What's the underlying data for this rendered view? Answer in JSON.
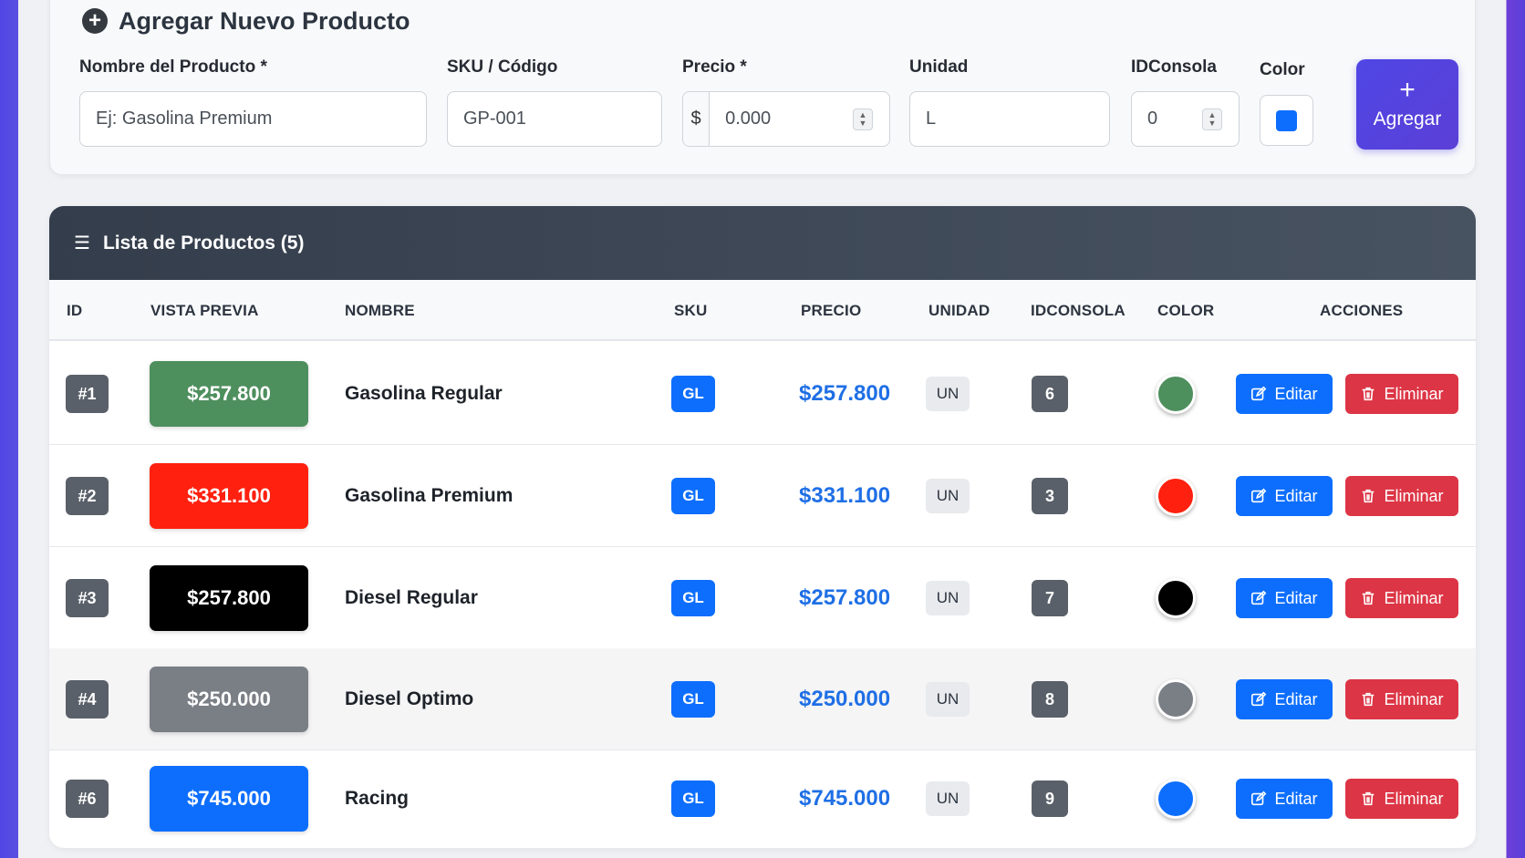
{
  "form": {
    "title": "Agregar Nuevo Producto",
    "fields": {
      "name": {
        "label": "Nombre del Producto *",
        "placeholder": "Ej: Gasolina Premium"
      },
      "sku": {
        "label": "SKU / Código",
        "placeholder": "GP-001"
      },
      "price": {
        "label": "Precio *",
        "prefix": "$",
        "placeholder": "0.000"
      },
      "unit": {
        "label": "Unidad",
        "value": "L"
      },
      "console": {
        "label": "IDConsola",
        "value": "0"
      },
      "color": {
        "label": "Color",
        "value": "#0d6efd"
      }
    },
    "submit": {
      "icon": "+",
      "label": "Agregar"
    }
  },
  "list": {
    "title": "Lista de Productos (5)",
    "columns": [
      "ID",
      "VISTA PREVIA",
      "NOMBRE",
      "SKU",
      "PRECIO",
      "UNIDAD",
      "IDCONSOLA",
      "COLOR",
      "ACCIONES"
    ],
    "edit_label": "Editar",
    "delete_label": "Eliminar",
    "rows": [
      {
        "id": "#1",
        "preview": "$257.800",
        "name": "Gasolina Regular",
        "sku": "GL",
        "price": "$257.800",
        "unit": "UN",
        "console": "6",
        "color": "#4e8f5e"
      },
      {
        "id": "#2",
        "preview": "$331.100",
        "name": "Gasolina Premium",
        "sku": "GL",
        "price": "$331.100",
        "unit": "UN",
        "console": "3",
        "color": "#ff200f"
      },
      {
        "id": "#3",
        "preview": "$257.800",
        "name": "Diesel Regular",
        "sku": "GL",
        "price": "$257.800",
        "unit": "UN",
        "console": "7",
        "color": "#000000"
      },
      {
        "id": "#4",
        "preview": "$250.000",
        "name": "Diesel Optimo",
        "sku": "GL",
        "price": "$250.000",
        "unit": "UN",
        "console": "8",
        "color": "#7a7f86"
      },
      {
        "id": "#6",
        "preview": "$745.000",
        "name": "Racing",
        "sku": "GL",
        "price": "$745.000",
        "unit": "UN",
        "console": "9",
        "color": "#0d6efd"
      }
    ]
  }
}
